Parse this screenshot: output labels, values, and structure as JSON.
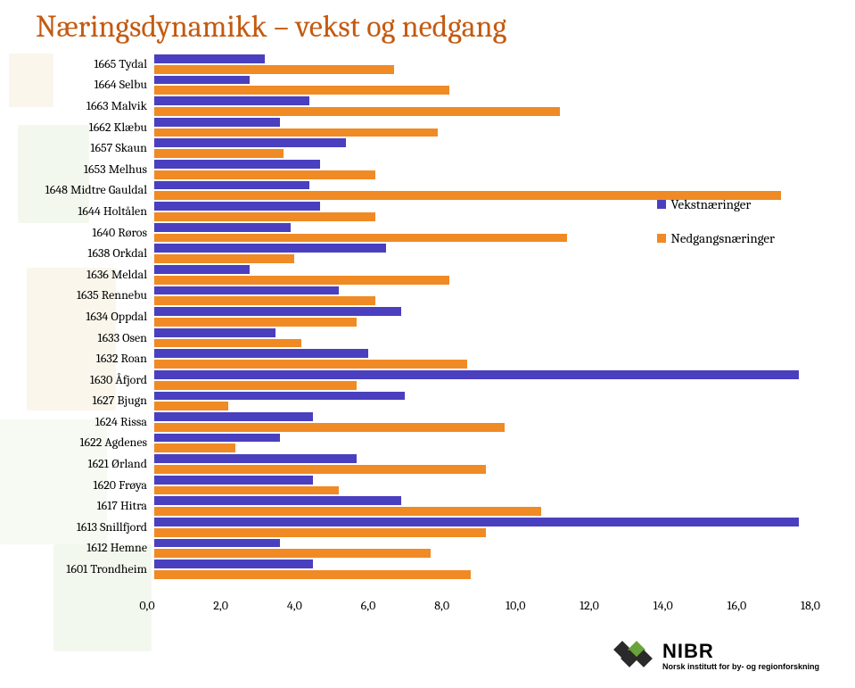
{
  "title": "Næringsdynamikk – vekst og nedgang",
  "chart": {
    "type": "bar",
    "x_min": 0.0,
    "x_max": 18.0,
    "x_tick_step": 2.0,
    "x_tick_labels": [
      "0,0",
      "2,0",
      "4,0",
      "6,0",
      "8,0",
      "10,0",
      "12,0",
      "14,0",
      "16,0",
      "18,0"
    ],
    "series": [
      {
        "key": "vekst",
        "label": "Vekstnæringer",
        "color": "#4a3fbf"
      },
      {
        "key": "nedgang",
        "label": "Nedgangsnæringer",
        "color": "#f08a24"
      }
    ],
    "categories": [
      {
        "label": "1665 Tydal",
        "vekst": 3.0,
        "nedgang": 6.5
      },
      {
        "label": "1664 Selbu",
        "vekst": 2.6,
        "nedgang": 8.0
      },
      {
        "label": "1663 Malvik",
        "vekst": 4.2,
        "nedgang": 11.0
      },
      {
        "label": "1662 Klæbu",
        "vekst": 3.4,
        "nedgang": 7.7
      },
      {
        "label": "1657 Skaun",
        "vekst": 5.2,
        "nedgang": 3.5
      },
      {
        "label": "1653 Melhus",
        "vekst": 4.5,
        "nedgang": 6.0
      },
      {
        "label": "1648 Midtre Gauldal",
        "vekst": 4.2,
        "nedgang": 17.0
      },
      {
        "label": "1644 Holtålen",
        "vekst": 4.5,
        "nedgang": 6.0
      },
      {
        "label": "1640 Røros",
        "vekst": 3.7,
        "nedgang": 11.2
      },
      {
        "label": "1638 Orkdal",
        "vekst": 6.3,
        "nedgang": 3.8
      },
      {
        "label": "1636 Meldal",
        "vekst": 2.6,
        "nedgang": 8.0
      },
      {
        "label": "1635 Rennebu",
        "vekst": 5.0,
        "nedgang": 6.0
      },
      {
        "label": "1634 Oppdal",
        "vekst": 6.7,
        "nedgang": 5.5
      },
      {
        "label": "1633 Osen",
        "vekst": 3.3,
        "nedgang": 4.0
      },
      {
        "label": "1632 Roan",
        "vekst": 5.8,
        "nedgang": 8.5
      },
      {
        "label": "1630 Åfjord",
        "vekst": 17.5,
        "nedgang": 5.5
      },
      {
        "label": "1627 Bjugn",
        "vekst": 6.8,
        "nedgang": 2.0
      },
      {
        "label": "1624 Rissa",
        "vekst": 4.3,
        "nedgang": 9.5
      },
      {
        "label": "1622 Agdenes",
        "vekst": 3.4,
        "nedgang": 2.2
      },
      {
        "label": "1621 Ørland",
        "vekst": 5.5,
        "nedgang": 9.0
      },
      {
        "label": "1620 Frøya",
        "vekst": 4.3,
        "nedgang": 5.0
      },
      {
        "label": "1617 Hitra",
        "vekst": 6.7,
        "nedgang": 10.5
      },
      {
        "label": "1613 Snillfjord",
        "vekst": 17.5,
        "nedgang": 9.0
      },
      {
        "label": "1612 Hemne",
        "vekst": 3.4,
        "nedgang": 7.5
      },
      {
        "label": "1601 Trondheim",
        "vekst": 4.3,
        "nedgang": 8.6
      }
    ]
  },
  "footer": {
    "acronym": "NIBR",
    "full": "Norsk institutt for by- og regionforskning",
    "logo_colors": {
      "dark": "#2a2a2a",
      "green": "#6aa33a"
    }
  },
  "watermark_color_a": "#c9e0b8",
  "watermark_color_b": "#e8d7a8",
  "watermark_color_c": "#d7e6c6"
}
